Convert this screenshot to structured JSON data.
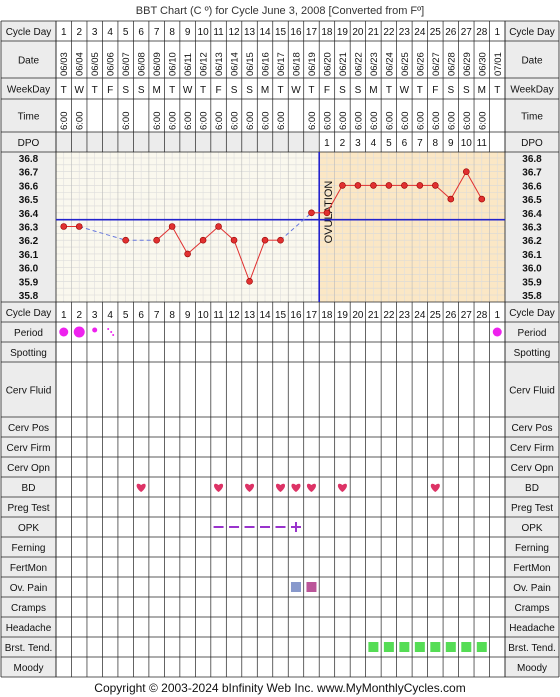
{
  "title": "BBT Chart (C º) for Cycle June 3, 2008  [Converted from Fº]",
  "footer": "Copyright © 2003-2024 bInfinity Web Inc.    www.MyMonthlyCycles.com",
  "labels": {
    "cycle_day": "Cycle Day",
    "date": "Date",
    "weekday": "WeekDay",
    "time": "Time",
    "dpo": "DPO"
  },
  "bottom_rows": [
    "Cycle Day",
    "Period",
    "Spotting",
    "Cerv Fluid",
    "Cerv Pos",
    "Cerv Firm",
    "Cerv Opn",
    "BD",
    "Preg Test",
    "OPK",
    "Ferning",
    "FertMon",
    "Ov. Pain",
    "Cramps",
    "Headache",
    "Brst. Tend.",
    "Moody"
  ],
  "cycle_days": [
    "1",
    "2",
    "3",
    "4",
    "5",
    "6",
    "7",
    "8",
    "9",
    "10",
    "11",
    "12",
    "13",
    "14",
    "15",
    "16",
    "17",
    "18",
    "19",
    "20",
    "21",
    "22",
    "23",
    "24",
    "25",
    "26",
    "27",
    "28",
    "1"
  ],
  "dates": [
    "06/03",
    "06/04",
    "06/05",
    "06/06",
    "06/07",
    "06/08",
    "06/09",
    "06/10",
    "06/11",
    "06/12",
    "06/13",
    "06/14",
    "06/15",
    "06/16",
    "06/17",
    "06/18",
    "06/19",
    "06/20",
    "06/21",
    "06/22",
    "06/23",
    "06/24",
    "06/25",
    "06/26",
    "06/27",
    "06/28",
    "06/29",
    "06/30",
    "07/01"
  ],
  "weekdays": [
    "T",
    "W",
    "T",
    "F",
    "S",
    "S",
    "M",
    "T",
    "W",
    "T",
    "F",
    "S",
    "S",
    "M",
    "T",
    "W",
    "T",
    "F",
    "S",
    "S",
    "M",
    "T",
    "W",
    "T",
    "F",
    "S",
    "S",
    "M",
    "T"
  ],
  "times": [
    "6:00",
    "6:00",
    "",
    "",
    "6:00",
    "",
    "6:00",
    "6:00",
    "6:00",
    "6:00",
    "6:00",
    "6:00",
    "6:00",
    "6:00",
    "6:00",
    "",
    "6:00",
    "6:00",
    "6:00",
    "6:00",
    "6:00",
    "6:00",
    "6:00",
    "6:00",
    "6:00",
    "6:00",
    "6:00",
    "6:00",
    ""
  ],
  "dpo": [
    "",
    "",
    "",
    "",
    "",
    "",
    "",
    "",
    "",
    "",
    "",
    "",
    "",
    "",
    "",
    "",
    "",
    "1",
    "2",
    "3",
    "4",
    "5",
    "6",
    "7",
    "8",
    "9",
    "10",
    "11",
    ""
  ],
  "ovulation_label": "OVULATION",
  "chart_data": {
    "type": "line",
    "title": "BBT Chart (C º) for Cycle June 3, 2008  [Converted from Fº]",
    "xlabel": "Cycle Day",
    "ylabel": "",
    "ylim": [
      35.8,
      36.8
    ],
    "y_ticks": [
      "36.8",
      "36.7",
      "36.6",
      "36.5",
      "36.4",
      "36.3",
      "36.2",
      "36.1",
      "36.0",
      "35.9",
      "35.8"
    ],
    "coverline": 36.35,
    "ovulation_day": 17,
    "x": [
      1,
      2,
      3,
      4,
      5,
      6,
      7,
      8,
      9,
      10,
      11,
      12,
      13,
      14,
      15,
      16,
      17,
      18,
      19,
      20,
      21,
      22,
      23,
      24,
      25,
      26,
      27,
      28,
      29
    ],
    "temps": [
      36.3,
      36.3,
      null,
      null,
      36.2,
      null,
      36.2,
      36.3,
      36.1,
      36.2,
      36.3,
      36.2,
      35.9,
      36.2,
      36.2,
      null,
      36.4,
      36.4,
      36.6,
      36.6,
      36.6,
      36.6,
      36.6,
      36.6,
      36.6,
      36.5,
      36.7,
      36.5,
      null
    ],
    "grid": true
  },
  "markers": {
    "period": {
      "1": "dot-med",
      "2": "dot-large",
      "3": "dot-small",
      "4": "dots-tiny",
      "29": "dot-med"
    },
    "bd": [
      6,
      11,
      13,
      15,
      16,
      17,
      19,
      25
    ],
    "opk": {
      "11": "-",
      "12": "-",
      "13": "-",
      "14": "-",
      "15": "-",
      "16": "+"
    },
    "ov_pain": {
      "16": "#8899cc",
      "17": "#bb5599"
    },
    "brst_tend": [
      21,
      22,
      23,
      24,
      25,
      26,
      27,
      28
    ]
  },
  "colors": {
    "accent_red": "#e03030",
    "ovulation_blue": "#2222cc",
    "luteal_fill": "#fbe7c5",
    "follicular_fill": "#faf8ee",
    "label_fill": "#ececec",
    "period_magenta": "#ee22ee",
    "heart": "#dd3366",
    "opk_purple": "#9933cc",
    "brst_green": "#55dd55"
  }
}
